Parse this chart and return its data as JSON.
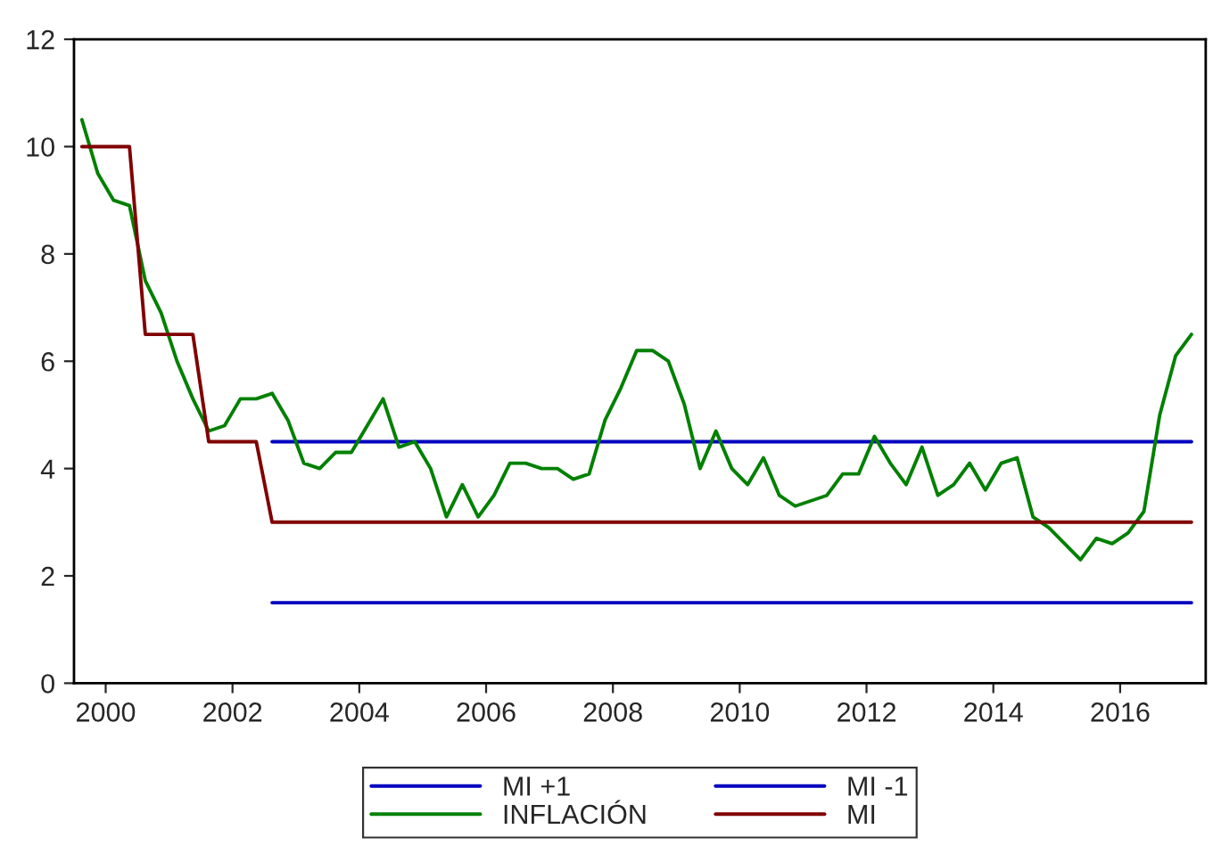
{
  "chart_data": {
    "type": "line",
    "x": [
      2000.125,
      2000.375,
      2000.625,
      2000.875,
      2001.125,
      2001.375,
      2001.625,
      2001.875,
      2002.125,
      2002.375,
      2002.625,
      2002.875,
      2003.125,
      2003.375,
      2003.625,
      2003.875,
      2004.125,
      2004.375,
      2004.625,
      2004.875,
      2005.125,
      2005.375,
      2005.625,
      2005.875,
      2006.125,
      2006.375,
      2006.625,
      2006.875,
      2007.125,
      2007.375,
      2007.625,
      2007.875,
      2008.125,
      2008.375,
      2008.625,
      2008.875,
      2009.125,
      2009.375,
      2009.625,
      2009.875,
      2010.125,
      2010.375,
      2010.625,
      2010.875,
      2011.125,
      2011.375,
      2011.625,
      2011.875,
      2012.125,
      2012.375,
      2012.625,
      2012.875,
      2013.125,
      2013.375,
      2013.625,
      2013.875,
      2014.125,
      2014.375,
      2014.625,
      2014.875,
      2015.125,
      2015.375,
      2015.625,
      2015.875,
      2016.125,
      2016.375,
      2016.625,
      2016.875,
      2017.125,
      2017.375,
      2017.625
    ],
    "series": [
      {
        "name": "MI +1",
        "color": "#0000c0",
        "values": [
          null,
          null,
          null,
          null,
          null,
          null,
          null,
          null,
          null,
          null,
          null,
          null,
          4.5,
          4.5,
          4.5,
          4.5,
          4.5,
          4.5,
          4.5,
          4.5,
          4.5,
          4.5,
          4.5,
          4.5,
          4.5,
          4.5,
          4.5,
          4.5,
          4.5,
          4.5,
          4.5,
          4.5,
          4.5,
          4.5,
          4.5,
          4.5,
          4.5,
          4.5,
          4.5,
          4.5,
          4.5,
          4.5,
          4.5,
          4.5,
          4.5,
          4.5,
          4.5,
          4.5,
          4.5,
          4.5,
          4.5,
          4.5,
          4.5,
          4.5,
          4.5,
          4.5,
          4.5,
          4.5,
          4.5,
          4.5,
          4.5,
          4.5,
          4.5,
          4.5,
          4.5,
          4.5,
          4.5,
          4.5,
          4.5,
          4.5,
          4.5
        ]
      },
      {
        "name": "MI -1",
        "color": "#0000c0",
        "values": [
          null,
          null,
          null,
          null,
          null,
          null,
          null,
          null,
          null,
          null,
          null,
          null,
          1.5,
          1.5,
          1.5,
          1.5,
          1.5,
          1.5,
          1.5,
          1.5,
          1.5,
          1.5,
          1.5,
          1.5,
          1.5,
          1.5,
          1.5,
          1.5,
          1.5,
          1.5,
          1.5,
          1.5,
          1.5,
          1.5,
          1.5,
          1.5,
          1.5,
          1.5,
          1.5,
          1.5,
          1.5,
          1.5,
          1.5,
          1.5,
          1.5,
          1.5,
          1.5,
          1.5,
          1.5,
          1.5,
          1.5,
          1.5,
          1.5,
          1.5,
          1.5,
          1.5,
          1.5,
          1.5,
          1.5,
          1.5,
          1.5,
          1.5,
          1.5,
          1.5,
          1.5,
          1.5,
          1.5,
          1.5,
          1.5,
          1.5,
          1.5
        ]
      },
      {
        "name": "INFLACIÓN",
        "color": "#008000",
        "values": [
          10.5,
          9.5,
          9.0,
          8.9,
          7.5,
          6.9,
          6.0,
          5.3,
          4.7,
          4.8,
          5.3,
          5.3,
          5.4,
          4.9,
          4.1,
          4.0,
          4.3,
          4.3,
          4.8,
          5.3,
          4.4,
          4.5,
          4.0,
          3.1,
          3.7,
          3.1,
          3.5,
          4.1,
          4.1,
          4.0,
          4.0,
          3.8,
          3.9,
          4.9,
          5.5,
          6.2,
          6.2,
          6.0,
          5.2,
          4.0,
          4.7,
          4.0,
          3.7,
          4.2,
          3.5,
          3.3,
          3.4,
          3.5,
          3.9,
          3.9,
          4.6,
          4.1,
          3.7,
          4.4,
          3.5,
          3.7,
          4.1,
          3.6,
          4.1,
          4.2,
          3.1,
          2.9,
          2.6,
          2.3,
          2.7,
          2.6,
          2.8,
          3.2,
          5.0,
          6.1,
          6.5
        ]
      },
      {
        "name": "MI",
        "color": "#800000",
        "values": [
          10,
          10,
          10,
          10,
          6.5,
          6.5,
          6.5,
          6.5,
          4.5,
          4.5,
          4.5,
          4.5,
          3,
          3,
          3,
          3,
          3,
          3,
          3,
          3,
          3,
          3,
          3,
          3,
          3,
          3,
          3,
          3,
          3,
          3,
          3,
          3,
          3,
          3,
          3,
          3,
          3,
          3,
          3,
          3,
          3,
          3,
          3,
          3,
          3,
          3,
          3,
          3,
          3,
          3,
          3,
          3,
          3,
          3,
          3,
          3,
          3,
          3,
          3,
          3,
          3,
          3,
          3,
          3,
          3,
          3,
          3,
          3,
          3,
          3,
          3
        ]
      }
    ],
    "xlim": [
      2000,
      2017.85
    ],
    "xticks": [
      {
        "value": 2000.5,
        "label": "2000"
      },
      {
        "value": 2002.5,
        "label": "2002"
      },
      {
        "value": 2004.5,
        "label": "2004"
      },
      {
        "value": 2006.5,
        "label": "2006"
      },
      {
        "value": 2008.5,
        "label": "2008"
      },
      {
        "value": 2010.5,
        "label": "2010"
      },
      {
        "value": 2012.5,
        "label": "2012"
      },
      {
        "value": 2014.5,
        "label": "2014"
      },
      {
        "value": 2016.5,
        "label": "2016"
      }
    ],
    "ylim": [
      0,
      12
    ],
    "yticks": [
      0,
      2,
      4,
      6,
      8,
      10,
      12
    ],
    "grid": false,
    "legend": "bottom",
    "marker": "none",
    "line_style": "solid"
  }
}
